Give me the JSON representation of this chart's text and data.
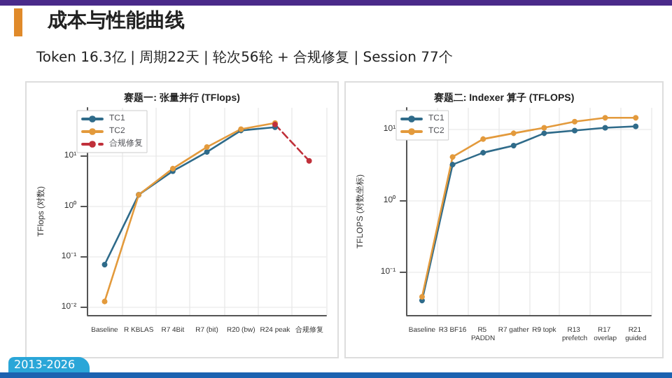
{
  "chart_data": [
    {
      "type": "other",
      "title": "成本与性能曲线",
      "subtitle": "Token 16.3亿 | 周期22天 | 轮次56轮 + 合规修复 | Session 77个",
      "annotations": [
        "2013-2026"
      ]
    },
    {
      "type": "line",
      "title": "赛题一: 张量并行 (TFlops)",
      "ylabel": "TFlops (对数)",
      "categories": [
        "Baseline",
        "R KBLAS",
        "R7 4Bit",
        "R7 (bit)",
        "R20 (bw)",
        "R24 peak",
        "合规修复"
      ],
      "series": [
        {
          "name": "TC1",
          "color": "#2f6b8a",
          "values": [
            0.07,
            1.7,
            5,
            12,
            32,
            37,
            null
          ]
        },
        {
          "name": "TC2",
          "color": "#e39a3c",
          "values": [
            0.013,
            1.7,
            5.6,
            15,
            34,
            45,
            null
          ]
        },
        {
          "name": "合规修复",
          "color": "#c0303a",
          "line_style": "dashed",
          "values": [
            null,
            null,
            null,
            null,
            null,
            42,
            8
          ]
        }
      ],
      "log": "y",
      "ylim": [
        0.007,
        90
      ],
      "yticks": [
        {
          "value": 0.01,
          "label": "10⁻²"
        },
        {
          "value": 0.1,
          "label": "10⁻¹"
        },
        {
          "value": 1,
          "label": "10⁰"
        },
        {
          "value": 10,
          "label": "10¹"
        }
      ],
      "grid": true,
      "legend": "top left",
      "marker": "circle"
    },
    {
      "type": "line",
      "title": "赛题二: Indexer 算子 (TFLOPS)",
      "ylabel": "TFLOPS (对数坐标)",
      "categories": [
        "Baseline",
        "R3 BF16",
        "R5 PADDN",
        "R7 gather",
        "R9 topk",
        "R13 prefetch",
        "R17 overlap",
        "R21 guided"
      ],
      "series": [
        {
          "name": "TC1",
          "color": "#2f6b8a",
          "values": [
            0.04,
            3.2,
            4.7,
            5.9,
            8.8,
            9.6,
            10.5,
            11
          ]
        },
        {
          "name": "TC2",
          "color": "#e39a3c",
          "values": [
            0.045,
            4.1,
            7.3,
            8.8,
            10.5,
            12.8,
            14.5,
            14.5
          ]
        }
      ],
      "log": "y",
      "ylim": [
        0.025,
        20
      ],
      "yticks": [
        {
          "value": 0.1,
          "label": "10⁻¹"
        },
        {
          "value": 1,
          "label": "10⁰"
        },
        {
          "value": 10,
          "label": "10¹"
        }
      ],
      "grid": true,
      "legend": "top left",
      "marker": "circle"
    }
  ]
}
